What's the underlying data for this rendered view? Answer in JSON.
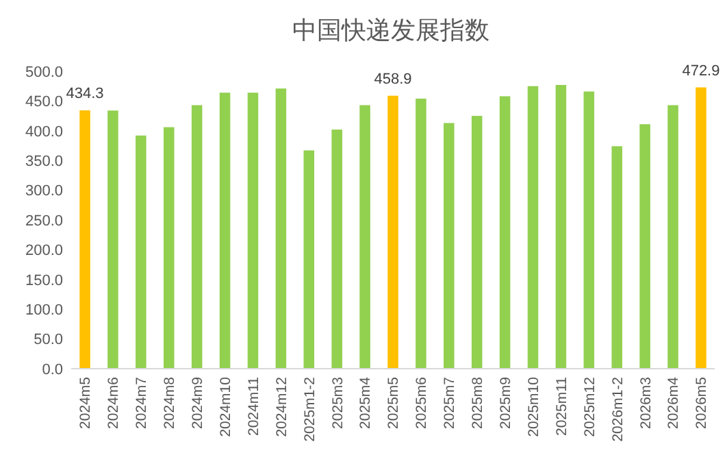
{
  "chart_data": {
    "type": "bar",
    "title": "中国快递发展指数",
    "categories": [
      "2024m5",
      "2024m6",
      "2024m7",
      "2024m8",
      "2024m9",
      "2024m10",
      "2024m11",
      "2024m12",
      "2025m1-2",
      "2025m3",
      "2025m4",
      "2025m5",
      "2025m6",
      "2025m7",
      "2025m8",
      "2025m9",
      "2025m10",
      "2025m11",
      "2025m12",
      "2026m1-2",
      "2026m3",
      "2026m4",
      "2026m5"
    ],
    "values": [
      434.3,
      434,
      392,
      406,
      443,
      464,
      464,
      471,
      367,
      402,
      443,
      458.9,
      454,
      413,
      425,
      458,
      475,
      477,
      466,
      374,
      411,
      443,
      472.9
    ],
    "colors": [
      "#ffc000",
      "#92d050",
      "#92d050",
      "#92d050",
      "#92d050",
      "#92d050",
      "#92d050",
      "#92d050",
      "#92d050",
      "#92d050",
      "#92d050",
      "#ffc000",
      "#92d050",
      "#92d050",
      "#92d050",
      "#92d050",
      "#92d050",
      "#92d050",
      "#92d050",
      "#92d050",
      "#92d050",
      "#92d050",
      "#ffc000"
    ],
    "value_labels": [
      "434.3",
      null,
      null,
      null,
      null,
      null,
      null,
      null,
      null,
      null,
      null,
      "458.9",
      null,
      null,
      null,
      null,
      null,
      null,
      null,
      null,
      null,
      null,
      "472.9"
    ],
    "ylim": [
      0,
      500
    ],
    "yticks": [
      {
        "value": 0,
        "label": "0.0"
      },
      {
        "value": 50,
        "label": "50.0"
      },
      {
        "value": 100,
        "label": "100.0"
      },
      {
        "value": 150,
        "label": "150.0"
      },
      {
        "value": 200,
        "label": "200.0"
      },
      {
        "value": 250,
        "label": "250.0"
      },
      {
        "value": 300,
        "label": "300.0"
      },
      {
        "value": 350,
        "label": "350.0"
      },
      {
        "value": 400,
        "label": "400.0"
      },
      {
        "value": 450,
        "label": "450.0"
      },
      {
        "value": 500,
        "label": "500.0"
      }
    ],
    "grid": false
  }
}
